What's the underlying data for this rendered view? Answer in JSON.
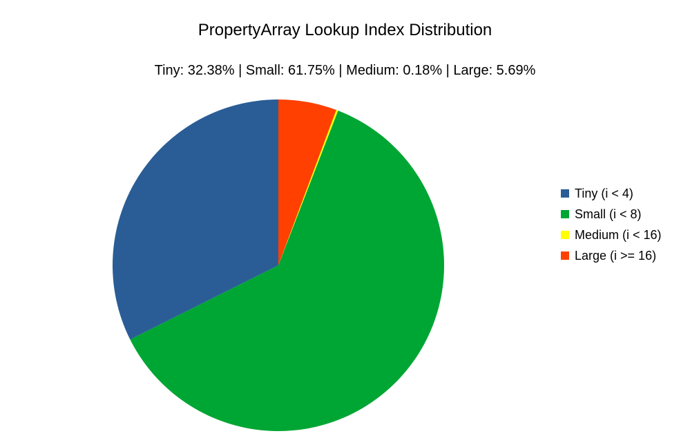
{
  "chart_data": {
    "type": "pie",
    "title": "PropertyArray Lookup Index Distribution",
    "subtitle": "Tiny: 32.38% | Small: 61.75% | Medium: 0.18% | Large: 5.69%",
    "legend_position": "right",
    "slices": [
      {
        "label": "Tiny (i < 4)",
        "value": 32.38,
        "color": "#2a5d96"
      },
      {
        "label": "Small (i < 8)",
        "value": 61.75,
        "color": "#00a633"
      },
      {
        "label": "Medium (i < 16)",
        "value": 0.18,
        "color": "#ffff00"
      },
      {
        "label": "Large (i >= 16)",
        "value": 5.69,
        "color": "#ff4000"
      }
    ]
  }
}
